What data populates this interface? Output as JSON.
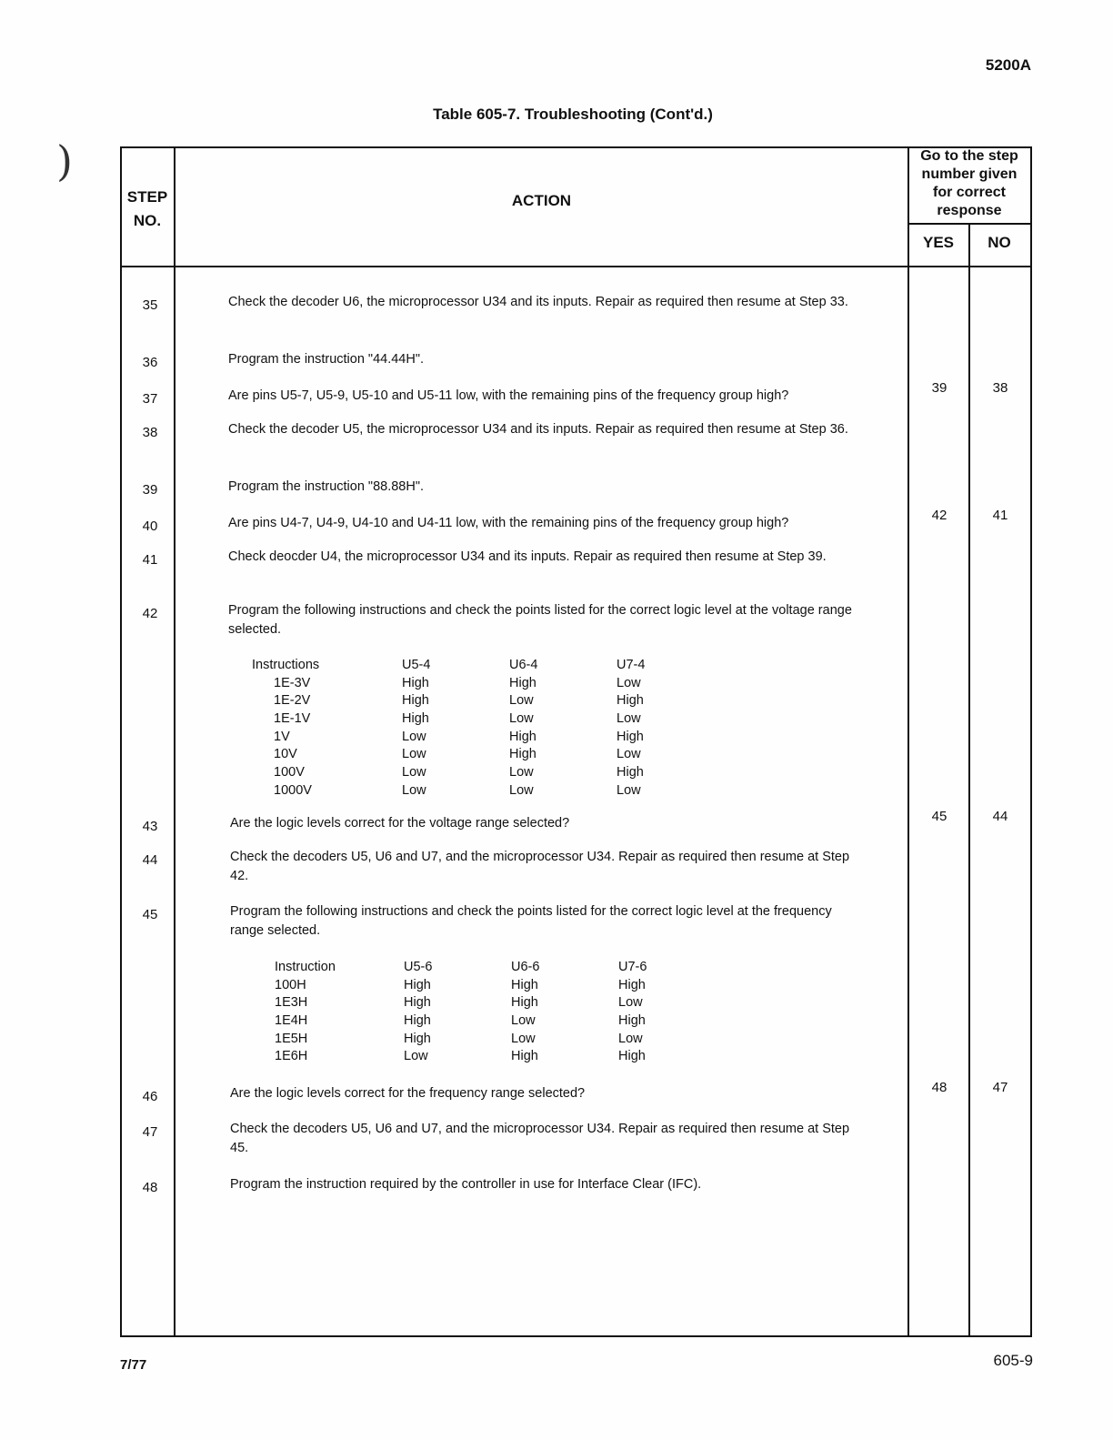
{
  "header": {
    "model": "5200A",
    "table_title": "Table 605-7. Troubleshooting (Cont'd.)"
  },
  "columns": {
    "step": "STEP\nNO.",
    "action": "ACTION",
    "goto": "Go to the step number given for correct response",
    "yes": "YES",
    "no": "NO"
  },
  "rows": [
    {
      "step": "35",
      "action": "Check the decoder U6, the microprocessor U34 and its inputs. Repair as required then resume at Step 33.",
      "yes": "",
      "no": ""
    },
    {
      "step": "36",
      "action": "Program the instruction \"44.44H\".",
      "yes": "",
      "no": ""
    },
    {
      "step": "37",
      "action": "Are pins U5-7, U5-9, U5-10 and U5-11 low, with the remaining pins of the frequency group high?",
      "yes": "39",
      "no": "38"
    },
    {
      "step": "38",
      "action": "Check the decoder U5, the microprocessor U34 and its inputs. Repair as required then resume at Step 36.",
      "yes": "",
      "no": ""
    },
    {
      "step": "39",
      "action": "Program the instruction \"88.88H\".",
      "yes": "",
      "no": ""
    },
    {
      "step": "40",
      "action": "Are pins U4-7, U4-9, U4-10 and U4-11 low, with the remaining pins of the frequency group high?",
      "yes": "42",
      "no": "41"
    },
    {
      "step": "41",
      "action": "Check deocder U4, the microprocessor U34 and its inputs. Repair as required then resume at Step 39.",
      "yes": "",
      "no": ""
    },
    {
      "step": "42",
      "action": "Program the following instructions and check the points listed for the correct logic level at the voltage range selected.",
      "yes": "",
      "no": ""
    },
    {
      "step": "43",
      "action": "Are the logic levels correct for the voltage range selected?",
      "yes": "45",
      "no": "44"
    },
    {
      "step": "44",
      "action": "Check the decoders U5, U6 and U7, and the microprocessor U34. Repair as required then resume at Step 42.",
      "yes": "",
      "no": ""
    },
    {
      "step": "45",
      "action": "Program the following instructions and check the points listed for the correct logic level at the frequency range selected.",
      "yes": "",
      "no": ""
    },
    {
      "step": "46",
      "action": "Are the logic levels correct for the frequency range selected?",
      "yes": "48",
      "no": "47"
    },
    {
      "step": "47",
      "action": "Check the decoders U5, U6 and U7, and the microprocessor U34. Repair as required then resume at Step 45.",
      "yes": "",
      "no": ""
    },
    {
      "step": "48",
      "action": "Program the instruction required by the controller in use for Interface Clear (IFC).",
      "yes": "",
      "no": ""
    }
  ],
  "voltage_table": {
    "headers": [
      "Instructions",
      "U5-4",
      "U6-4",
      "U7-4"
    ],
    "rows": [
      [
        "1E-3V",
        "High",
        "High",
        "Low"
      ],
      [
        "1E-2V",
        "High",
        "Low",
        "High"
      ],
      [
        "1E-1V",
        "High",
        "Low",
        "Low"
      ],
      [
        "1V",
        "Low",
        "High",
        "High"
      ],
      [
        "10V",
        "Low",
        "High",
        "Low"
      ],
      [
        "100V",
        "Low",
        "Low",
        "High"
      ],
      [
        "1000V",
        "Low",
        "Low",
        "Low"
      ]
    ]
  },
  "frequency_table": {
    "headers": [
      "Instruction",
      "U5-6",
      "U6-6",
      "U7-6"
    ],
    "rows": [
      [
        "100H",
        "High",
        "High",
        "High"
      ],
      [
        "1E3H",
        "High",
        "High",
        "Low"
      ],
      [
        "1E4H",
        "High",
        "Low",
        "High"
      ],
      [
        "1E5H",
        "High",
        "Low",
        "Low"
      ],
      [
        "1E6H",
        "Low",
        "High",
        "High"
      ]
    ]
  },
  "footer": {
    "date": "7/77",
    "page": "605-9"
  }
}
